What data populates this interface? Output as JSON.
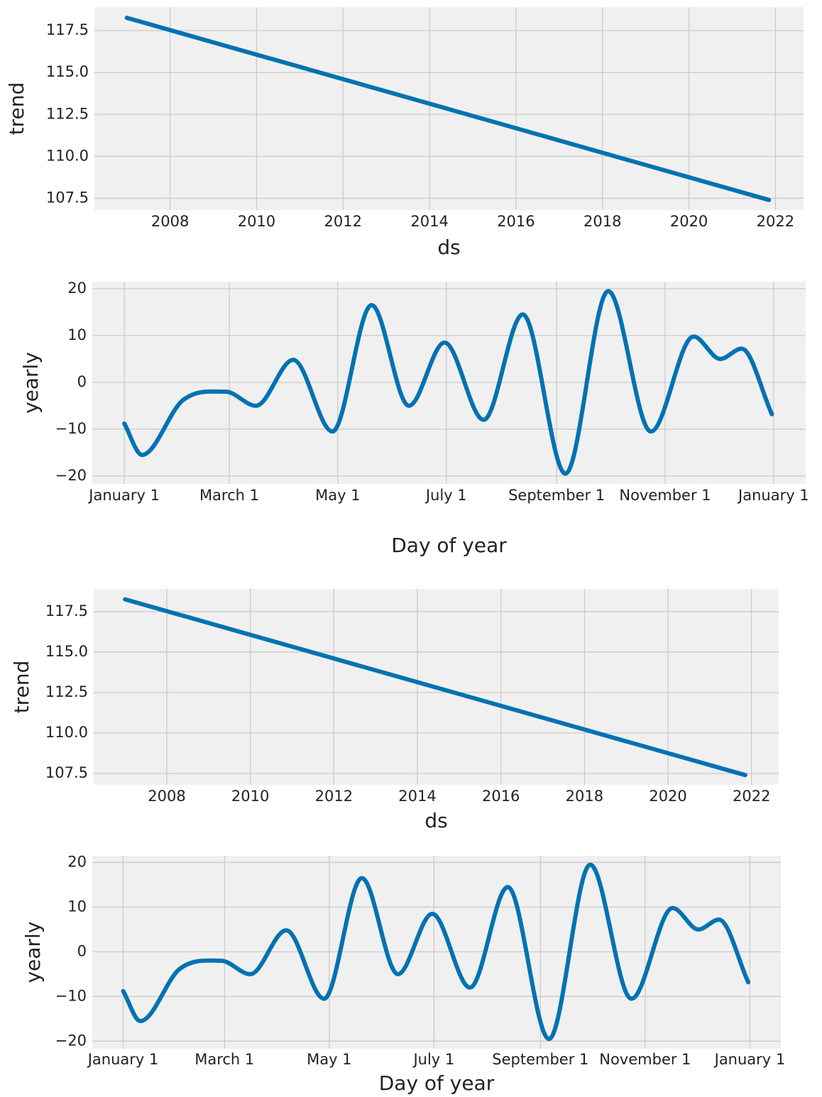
{
  "chart_data": [
    {
      "type": "line",
      "xlabel": "ds",
      "ylabel": "trend",
      "grid": true,
      "color": "#0072b2",
      "x": [
        2007.0,
        2021.85
      ],
      "values": [
        118.26,
        107.4
      ],
      "xlim": [
        2006.25,
        2022.65
      ],
      "ylim": [
        106.8,
        118.9
      ],
      "xticks": [
        2008,
        2010,
        2012,
        2014,
        2016,
        2018,
        2020,
        2022
      ],
      "yticks": [
        {
          "value": 107.5,
          "label": "107.5"
        },
        {
          "value": 110,
          "label": "110.0"
        },
        {
          "value": 112.5,
          "label": "112.5"
        },
        {
          "value": 115,
          "label": "115.0"
        },
        {
          "value": 117.5,
          "label": "117.5"
        }
      ]
    },
    {
      "type": "line",
      "xlabel": "Day of year",
      "ylabel": "yearly",
      "grid": true,
      "color": "#0072b2",
      "x": [
        0,
        10,
        33,
        57,
        74,
        95,
        117,
        139,
        160,
        180,
        202,
        224,
        248,
        272,
        296,
        320,
        335,
        347,
        364
      ],
      "values": [
        -8.8,
        -15.5,
        -3.8,
        -2,
        -5,
        4.8,
        -10.5,
        16.5,
        -5,
        8.5,
        -8,
        14.5,
        -19.5,
        19.5,
        -10.5,
        9.8,
        5,
        7.2,
        -6.8
      ],
      "xlim": [
        -18,
        383
      ],
      "ylim": [
        -21.7,
        21.5
      ],
      "xticks": [
        {
          "value": 0,
          "label": "January 1"
        },
        {
          "value": 59,
          "label": "March 1"
        },
        {
          "value": 120,
          "label": "May 1"
        },
        {
          "value": 181,
          "label": "July 1"
        },
        {
          "value": 243,
          "label": "September 1"
        },
        {
          "value": 304,
          "label": "November 1"
        },
        {
          "value": 365,
          "label": "January 1"
        }
      ],
      "yticks": [
        {
          "value": -20,
          "label": "−20"
        },
        {
          "value": -10,
          "label": "−10"
        },
        0,
        10,
        20
      ]
    },
    {
      "type": "line",
      "xlabel": "ds",
      "ylabel": "trend",
      "grid": true,
      "color": "#0072b2",
      "x": [
        2007.0,
        2021.85
      ],
      "values": [
        118.26,
        107.4
      ],
      "xlim": [
        2006.25,
        2022.65
      ],
      "ylim": [
        106.8,
        118.9
      ],
      "xticks": [
        2008,
        2010,
        2012,
        2014,
        2016,
        2018,
        2020,
        2022
      ],
      "yticks": [
        {
          "value": 107.5,
          "label": "107.5"
        },
        {
          "value": 110,
          "label": "110.0"
        },
        {
          "value": 112.5,
          "label": "112.5"
        },
        {
          "value": 115,
          "label": "115.0"
        },
        {
          "value": 117.5,
          "label": "117.5"
        }
      ]
    },
    {
      "type": "line",
      "xlabel": "Day of year",
      "ylabel": "yearly",
      "grid": true,
      "color": "#0072b2",
      "x": [
        0,
        10,
        33,
        57,
        74,
        95,
        117,
        139,
        160,
        180,
        202,
        224,
        248,
        272,
        296,
        320,
        335,
        347,
        364
      ],
      "values": [
        -8.8,
        -15.5,
        -3.8,
        -2,
        -5,
        4.8,
        -10.5,
        16.5,
        -5,
        8.5,
        -8,
        14.5,
        -19.5,
        19.5,
        -10.5,
        9.8,
        5,
        7.2,
        -6.8
      ],
      "xlim": [
        -18,
        383
      ],
      "ylim": [
        -21.7,
        21.5
      ],
      "xticks": [
        {
          "value": 0,
          "label": "January 1"
        },
        {
          "value": 59,
          "label": "March 1"
        },
        {
          "value": 120,
          "label": "May 1"
        },
        {
          "value": 181,
          "label": "July 1"
        },
        {
          "value": 243,
          "label": "September 1"
        },
        {
          "value": 304,
          "label": "November 1"
        },
        {
          "value": 365,
          "label": "January 1"
        }
      ],
      "yticks": [
        {
          "value": -20,
          "label": "−20"
        },
        {
          "value": -10,
          "label": "−10"
        },
        0,
        10,
        20
      ]
    }
  ]
}
